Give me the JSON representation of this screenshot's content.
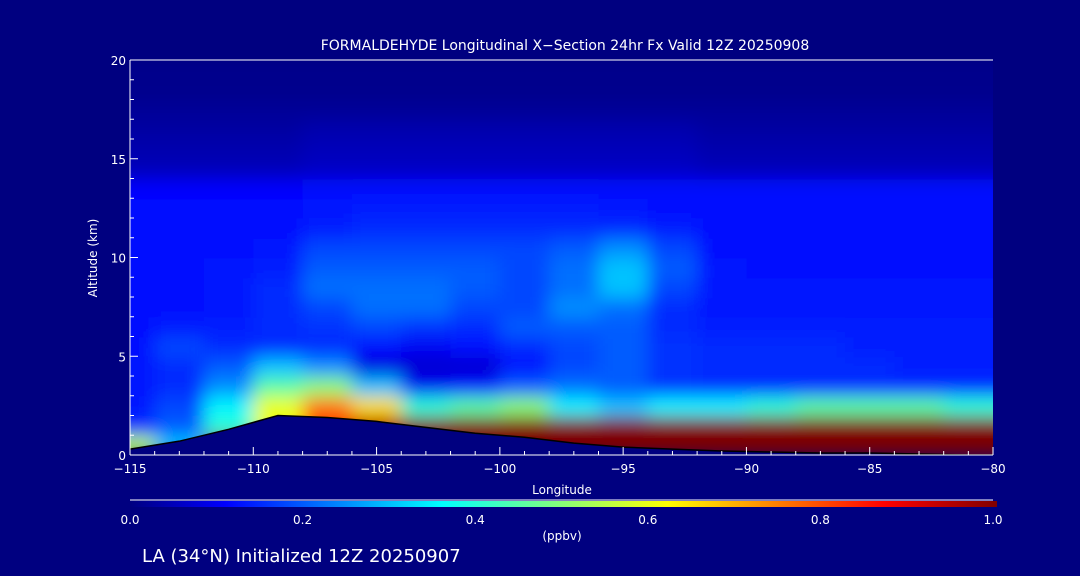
{
  "chart_data": {
    "type": "heatmap",
    "title": "FORMALDEHYDE Longitudinal X−Section 24hr  Fx Valid 12Z 20250908",
    "xlabel": "Longitude",
    "ylabel": "Altitude (km)",
    "xlim": [
      -115,
      -80
    ],
    "ylim": [
      0,
      20
    ],
    "xticks": [
      "−115",
      "−110",
      "−105",
      "−100",
      "−95",
      "−90",
      "−85",
      "−80"
    ],
    "xtick_values": [
      -115,
      -110,
      -105,
      -100,
      -95,
      -90,
      -85,
      -80
    ],
    "yticks": [
      "0",
      "5",
      "10",
      "15",
      "20"
    ],
    "ytick_values": [
      0,
      5,
      10,
      15,
      20
    ],
    "colorbar": {
      "label": "(ppbv)",
      "range": [
        0,
        1
      ],
      "ticks": [
        "0.0",
        "0.2",
        "0.4",
        "0.6",
        "0.8",
        "1.0"
      ],
      "colormap": "jet"
    },
    "longitudes": [
      -115,
      -113,
      -111,
      -109,
      -107,
      -105,
      -103,
      -101,
      -99,
      -97,
      -95,
      -93,
      -91,
      -89,
      -87,
      -85,
      -83,
      -81
    ],
    "altitudes_km": [
      0.5,
      1.5,
      2.5,
      3.5,
      4.5,
      5.5,
      6.5,
      7.5,
      8.5,
      9.5,
      10.5,
      11.5,
      12.5,
      13.5,
      14.5,
      15.5,
      16.5,
      17.5,
      18.5,
      19.5
    ],
    "values": [
      [
        0.55,
        0.3,
        1,
        1,
        1,
        1,
        1,
        1,
        1,
        1,
        1,
        1,
        1,
        1,
        1,
        1,
        1,
        1
      ],
      [
        0.15,
        0.2,
        0.4,
        0.6,
        0.85,
        0.95,
        1,
        1,
        1,
        1,
        1,
        1,
        1,
        1,
        1,
        1,
        1,
        1
      ],
      [
        0.13,
        0.18,
        0.35,
        0.6,
        0.75,
        0.65,
        0.4,
        0.45,
        0.5,
        0.35,
        0.3,
        0.35,
        0.35,
        0.4,
        0.45,
        0.45,
        0.45,
        0.4
      ],
      [
        0.13,
        0.15,
        0.25,
        0.45,
        0.5,
        0.3,
        0.1,
        0.12,
        0.2,
        0.22,
        0.2,
        0.16,
        0.15,
        0.15,
        0.15,
        0.15,
        0.15,
        0.15
      ],
      [
        0.13,
        0.15,
        0.2,
        0.3,
        0.25,
        0.08,
        0.07,
        0.07,
        0.12,
        0.18,
        0.2,
        0.16,
        0.15,
        0.15,
        0.15,
        0.15,
        0.14,
        0.14
      ],
      [
        0.12,
        0.18,
        0.15,
        0.15,
        0.15,
        0.12,
        0.1,
        0.12,
        0.15,
        0.18,
        0.2,
        0.16,
        0.15,
        0.15,
        0.15,
        0.14,
        0.14,
        0.14
      ],
      [
        0.12,
        0.14,
        0.14,
        0.15,
        0.16,
        0.18,
        0.16,
        0.15,
        0.2,
        0.2,
        0.2,
        0.15,
        0.14,
        0.14,
        0.14,
        0.14,
        0.14,
        0.14
      ],
      [
        0.12,
        0.12,
        0.13,
        0.15,
        0.18,
        0.22,
        0.22,
        0.18,
        0.18,
        0.25,
        0.22,
        0.15,
        0.13,
        0.13,
        0.13,
        0.13,
        0.13,
        0.13
      ],
      [
        0.12,
        0.12,
        0.13,
        0.15,
        0.22,
        0.22,
        0.22,
        0.2,
        0.18,
        0.22,
        0.3,
        0.18,
        0.13,
        0.13,
        0.13,
        0.13,
        0.13,
        0.13
      ],
      [
        0.12,
        0.12,
        0.13,
        0.14,
        0.2,
        0.2,
        0.2,
        0.2,
        0.18,
        0.22,
        0.3,
        0.2,
        0.13,
        0.12,
        0.12,
        0.12,
        0.12,
        0.12
      ],
      [
        0.12,
        0.12,
        0.12,
        0.13,
        0.18,
        0.18,
        0.18,
        0.18,
        0.18,
        0.2,
        0.25,
        0.18,
        0.12,
        0.12,
        0.12,
        0.12,
        0.12,
        0.12
      ],
      [
        0.12,
        0.12,
        0.12,
        0.12,
        0.14,
        0.15,
        0.15,
        0.15,
        0.15,
        0.15,
        0.15,
        0.14,
        0.12,
        0.12,
        0.12,
        0.12,
        0.12,
        0.12
      ],
      [
        0.12,
        0.12,
        0.12,
        0.12,
        0.13,
        0.14,
        0.14,
        0.14,
        0.14,
        0.14,
        0.13,
        0.12,
        0.12,
        0.12,
        0.12,
        0.12,
        0.12,
        0.12
      ],
      [
        0.11,
        0.11,
        0.11,
        0.11,
        0.12,
        0.12,
        0.12,
        0.12,
        0.12,
        0.12,
        0.12,
        0.12,
        0.12,
        0.12,
        0.12,
        0.12,
        0.12,
        0.12
      ],
      [
        0.05,
        0.05,
        0.05,
        0.05,
        0.06,
        0.06,
        0.06,
        0.06,
        0.06,
        0.06,
        0.06,
        0.06,
        0.05,
        0.05,
        0.05,
        0.05,
        0.05,
        0.05
      ],
      [
        0.04,
        0.04,
        0.04,
        0.04,
        0.05,
        0.05,
        0.05,
        0.05,
        0.05,
        0.05,
        0.05,
        0.05,
        0.04,
        0.04,
        0.04,
        0.04,
        0.04,
        0.04
      ],
      [
        0.03,
        0.03,
        0.03,
        0.03,
        0.04,
        0.04,
        0.04,
        0.04,
        0.04,
        0.04,
        0.04,
        0.04,
        0.03,
        0.03,
        0.03,
        0.03,
        0.03,
        0.03
      ],
      [
        0.02,
        0.02,
        0.02,
        0.02,
        0.02,
        0.02,
        0.02,
        0.02,
        0.02,
        0.02,
        0.02,
        0.02,
        0.02,
        0.02,
        0.02,
        0.02,
        0.02,
        0.02
      ],
      [
        0.01,
        0.01,
        0.01,
        0.01,
        0.01,
        0.01,
        0.01,
        0.01,
        0.01,
        0.01,
        0.01,
        0.01,
        0.01,
        0.01,
        0.01,
        0.01,
        0.01,
        0.01
      ],
      [
        0.01,
        0.01,
        0.01,
        0.01,
        0.01,
        0.01,
        0.01,
        0.01,
        0.01,
        0.01,
        0.01,
        0.01,
        0.01,
        0.01,
        0.01,
        0.01,
        0.01,
        0.01
      ]
    ],
    "terrain_km": [
      0.3,
      0.7,
      1.3,
      2.0,
      1.9,
      1.7,
      1.4,
      1.1,
      0.9,
      0.6,
      0.4,
      0.3,
      0.2,
      0.15,
      0.1,
      0.1,
      0.05,
      0.0
    ]
  },
  "footer": "LA (34°N) Initialized 12Z 20250907",
  "colors": {
    "background": "#000080",
    "ground": "#000080"
  }
}
